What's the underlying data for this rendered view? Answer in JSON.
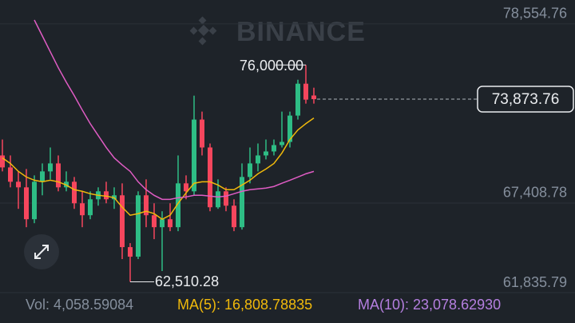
{
  "chart_data": {
    "type": "candlestick",
    "watermark": "BINANCE",
    "ylim": [
      61637,
      80043
    ],
    "yticks": [
      {
        "value": 78554.76,
        "label": "78,554.76"
      },
      {
        "value": 67408.78,
        "label": "67,408.78"
      },
      {
        "value": 61835.79,
        "label": "61,835.79"
      }
    ],
    "grid": true,
    "up_color": "#2ebd85",
    "down_color": "#f6465d",
    "candles": {
      "open": [
        70371,
        69627,
        68734,
        68387,
        66403,
        68734,
        69379,
        69875,
        68387,
        68734,
        67395,
        66651,
        67643,
        68139,
        67643,
        67891,
        64667,
        64072,
        67891,
        66651,
        65907,
        66403,
        65907,
        68635,
        68139,
        72603,
        70867,
        67147,
        68139,
        67246,
        65907,
        69032,
        69875,
        70371,
        70619,
        71016,
        71214,
        72851,
        74835,
        74100
      ],
      "high": [
        71363,
        70371,
        69379,
        69528,
        69131,
        69875,
        70867,
        70371,
        69379,
        69032,
        68139,
        68139,
        68387,
        68734,
        68387,
        68635,
        64915,
        68139,
        68883,
        67395,
        66899,
        67395,
        70371,
        69131,
        74091,
        73099,
        71115,
        68883,
        68387,
        67643,
        69875,
        70867,
        71115,
        71363,
        71363,
        73099,
        73099,
        75083,
        76000,
        74587
      ],
      "low": [
        69379,
        68387,
        67048,
        65907,
        66155,
        67891,
        68883,
        68139,
        68139,
        67048,
        65907,
        66403,
        67246,
        67395,
        67048,
        63923,
        62510.28,
        63923,
        65907,
        65163,
        63179,
        65659,
        65659,
        67643,
        67891,
        70371,
        66899,
        67048,
        66899,
        65659,
        65758,
        68635,
        69379,
        70123,
        70371,
        70867,
        70867,
        72603,
        73595,
        73595
      ],
      "close": [
        69627,
        68734,
        68387,
        66403,
        68734,
        69379,
        69875,
        68387,
        68734,
        67395,
        66651,
        67643,
        68139,
        67643,
        67891,
        64667,
        64072,
        67891,
        66651,
        65907,
        66403,
        65907,
        68635,
        68139,
        72603,
        70867,
        67147,
        68139,
        67246,
        65907,
        69032,
        69875,
        70371,
        70619,
        71016,
        71214,
        72851,
        74835,
        73843,
        73873.76
      ]
    },
    "series": [
      {
        "color": "#f0b90b",
        "values": [
          70220,
          69870,
          69380,
          69030,
          68830,
          68730,
          68830,
          68730,
          68530,
          68240,
          68140,
          67990,
          67890,
          67840,
          67740,
          67150,
          66650,
          66750,
          66900,
          66750,
          66400,
          66650,
          67390,
          68040,
          68640,
          68730,
          68730,
          68530,
          68240,
          68240,
          68530,
          68830,
          69230,
          69530,
          69870,
          70520,
          71360,
          71960,
          72350,
          72700
        ]
      },
      {
        "color": "#e05cc4",
        "values": [
          null,
          null,
          null,
          null,
          78800,
          77810,
          76820,
          75830,
          74930,
          74090,
          73200,
          72350,
          71610,
          70870,
          70220,
          69780,
          69380,
          68730,
          68240,
          67890,
          67640,
          67640,
          67740,
          67790,
          67890,
          67890,
          67840,
          67790,
          67840,
          67990,
          68140,
          68240,
          68290,
          68340,
          68440,
          68640,
          68830,
          69030,
          69230,
          69380
        ]
      }
    ],
    "high_label": "76,000.00",
    "low_label": "62,510.28",
    "last_price": {
      "value": 73873.76,
      "label": "73,873.76"
    },
    "legend": [
      {
        "text": "Vol: 4,058.59084",
        "color": "#848e9c"
      },
      {
        "text": "MA(5): 16,808.78835",
        "color": "#f0b90b"
      },
      {
        "text": "MA(10): 23,078.62930",
        "color": "#b57fe0"
      }
    ]
  }
}
